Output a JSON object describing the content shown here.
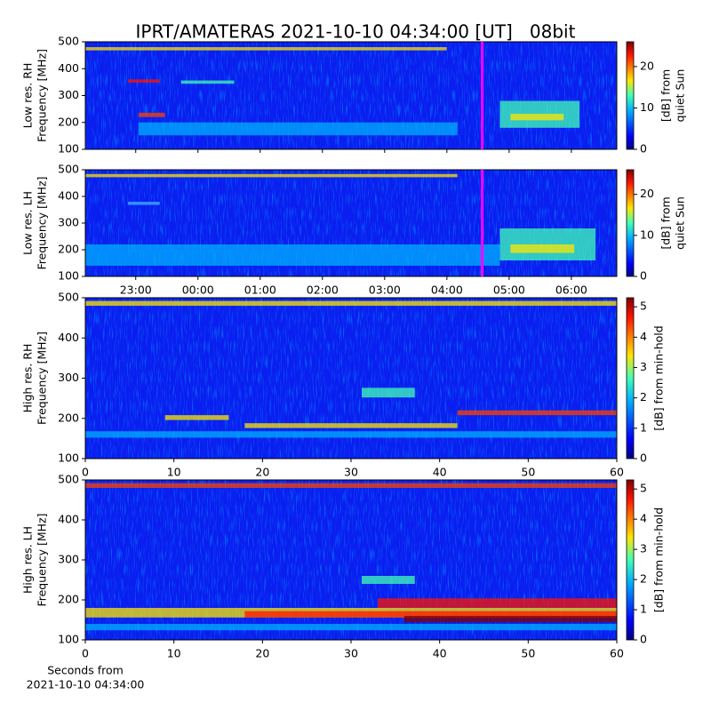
{
  "title": "IPRT/AMATERAS 2021-10-10 04:34:00 [UT]   08bit",
  "chart_data": [
    {
      "type": "spectrogram",
      "ylabel": [
        "Low res. RH",
        "Frequency [MHz]"
      ],
      "ylim": [
        100,
        500
      ],
      "yticks": [
        100,
        200,
        300,
        400,
        500
      ],
      "colorbar_label": [
        "[dB] from",
        "quiet Sun"
      ],
      "colormap": "jet",
      "clim": [
        0,
        26
      ],
      "cticks": [
        0,
        10,
        20
      ],
      "marker_x": 28.567,
      "marker_color": "#ff00ff"
    },
    {
      "type": "spectrogram",
      "ylabel": [
        "Low res. LH",
        "Frequency [MHz]"
      ],
      "ylim": [
        100,
        500
      ],
      "yticks": [
        100,
        200,
        300,
        400,
        500
      ],
      "xlim": [
        22.19,
        30.73
      ],
      "xticks": [
        {
          "value": 23,
          "label": "23:00"
        },
        {
          "value": 24,
          "label": "00:00"
        },
        {
          "value": 25,
          "label": "01:00"
        },
        {
          "value": 26,
          "label": "02:00"
        },
        {
          "value": 27,
          "label": "03:00"
        },
        {
          "value": 28,
          "label": "04:00"
        },
        {
          "value": 29,
          "label": "05:00"
        },
        {
          "value": 30,
          "label": "06:00"
        }
      ],
      "colorbar_label": [
        "[dB] from",
        "quiet Sun"
      ],
      "colormap": "jet",
      "clim": [
        0,
        26
      ],
      "cticks": [
        0,
        10,
        20
      ],
      "marker_x": 28.567,
      "marker_color": "#ff00ff"
    },
    {
      "type": "spectrogram",
      "ylabel": [
        "High res. RH",
        "Frequency [MHz]"
      ],
      "ylim": [
        100,
        500
      ],
      "yticks": [
        100,
        200,
        300,
        400,
        500
      ],
      "xlim": [
        0,
        60
      ],
      "xticks": [
        0,
        10,
        20,
        30,
        40,
        50,
        60
      ],
      "colorbar_label": [
        "[dB] from min-hold"
      ],
      "colormap": "jet",
      "clim": [
        0,
        5.3
      ],
      "cticks": [
        0,
        1,
        2,
        3,
        4,
        5
      ]
    },
    {
      "type": "spectrogram",
      "ylabel": [
        "High res. LH",
        "Frequency [MHz]"
      ],
      "ylim": [
        100,
        500
      ],
      "yticks": [
        100,
        200,
        300,
        400,
        500
      ],
      "xlim": [
        0,
        60
      ],
      "xticks": [
        0,
        10,
        20,
        30,
        40,
        50,
        60
      ],
      "xlabel": [
        "Seconds from",
        "2021-10-10 04:34:00"
      ],
      "colorbar_label": [
        "[dB] from min-hold"
      ],
      "colormap": "jet",
      "clim": [
        0,
        5.3
      ],
      "cticks": [
        0,
        1,
        2,
        3,
        4,
        5
      ]
    }
  ]
}
